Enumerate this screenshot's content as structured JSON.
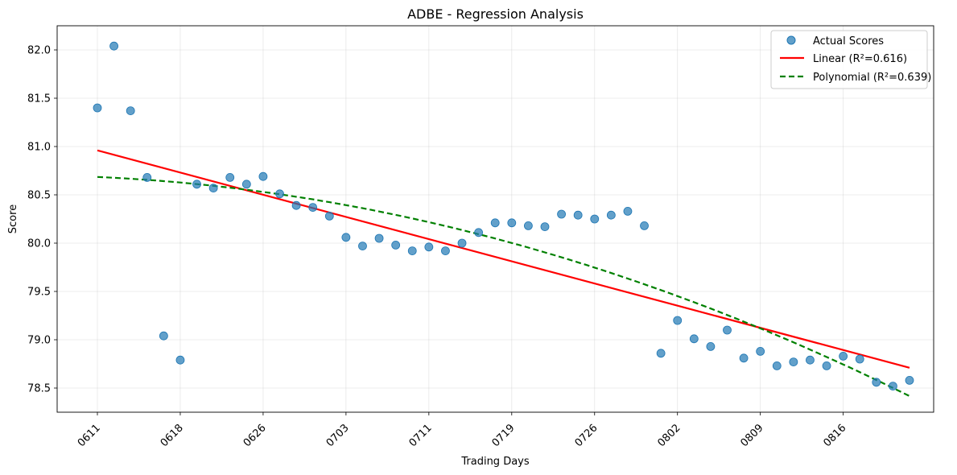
{
  "chart_data": {
    "type": "scatter",
    "title": "ADBE - Regression Analysis",
    "xlabel": "Trading Days",
    "ylabel": "Score",
    "ylim": [
      78.25,
      82.25
    ],
    "y_ticks": [
      78.5,
      79.0,
      79.5,
      80.0,
      80.5,
      81.0,
      81.5,
      82.0
    ],
    "y_tick_labels": [
      "78.5",
      "79.0",
      "79.5",
      "80.0",
      "80.5",
      "81.0",
      "81.5",
      "82.0"
    ],
    "x_tick_labels": [
      "0611",
      "0618",
      "0626",
      "0703",
      "0711",
      "0719",
      "0726",
      "0802",
      "0809",
      "0816"
    ],
    "x_tick_indices": [
      0,
      5,
      10,
      15,
      20,
      25,
      30,
      35,
      40,
      45
    ],
    "grid": true,
    "legend_position": "top-right",
    "series": [
      {
        "name": "Actual Scores",
        "kind": "scatter",
        "color": "#1f77b4",
        "values": [
          81.4,
          82.04,
          81.37,
          80.68,
          79.04,
          78.79,
          80.61,
          80.57,
          80.68,
          80.61,
          80.69,
          80.51,
          80.39,
          80.37,
          80.28,
          80.06,
          79.97,
          80.05,
          79.98,
          79.92,
          79.96,
          79.92,
          80.0,
          80.11,
          80.21,
          80.21,
          80.18,
          80.17,
          80.3,
          80.29,
          80.25,
          80.29,
          80.33,
          80.18,
          78.86,
          79.2,
          79.01,
          78.93,
          79.1,
          78.81,
          78.88,
          78.73,
          78.77,
          78.79,
          78.73,
          78.83,
          78.8,
          78.56,
          78.52,
          78.58
        ]
      },
      {
        "name": "Linear (R²=0.616)",
        "kind": "line",
        "color": "#ff0000",
        "start": 80.96,
        "end": 78.71
      },
      {
        "name": "Polynomial (R²=0.639)",
        "kind": "dashed-line",
        "color": "#008000",
        "coefficients": [
          80.685,
          -0.00758,
          -0.00079
        ]
      }
    ]
  }
}
